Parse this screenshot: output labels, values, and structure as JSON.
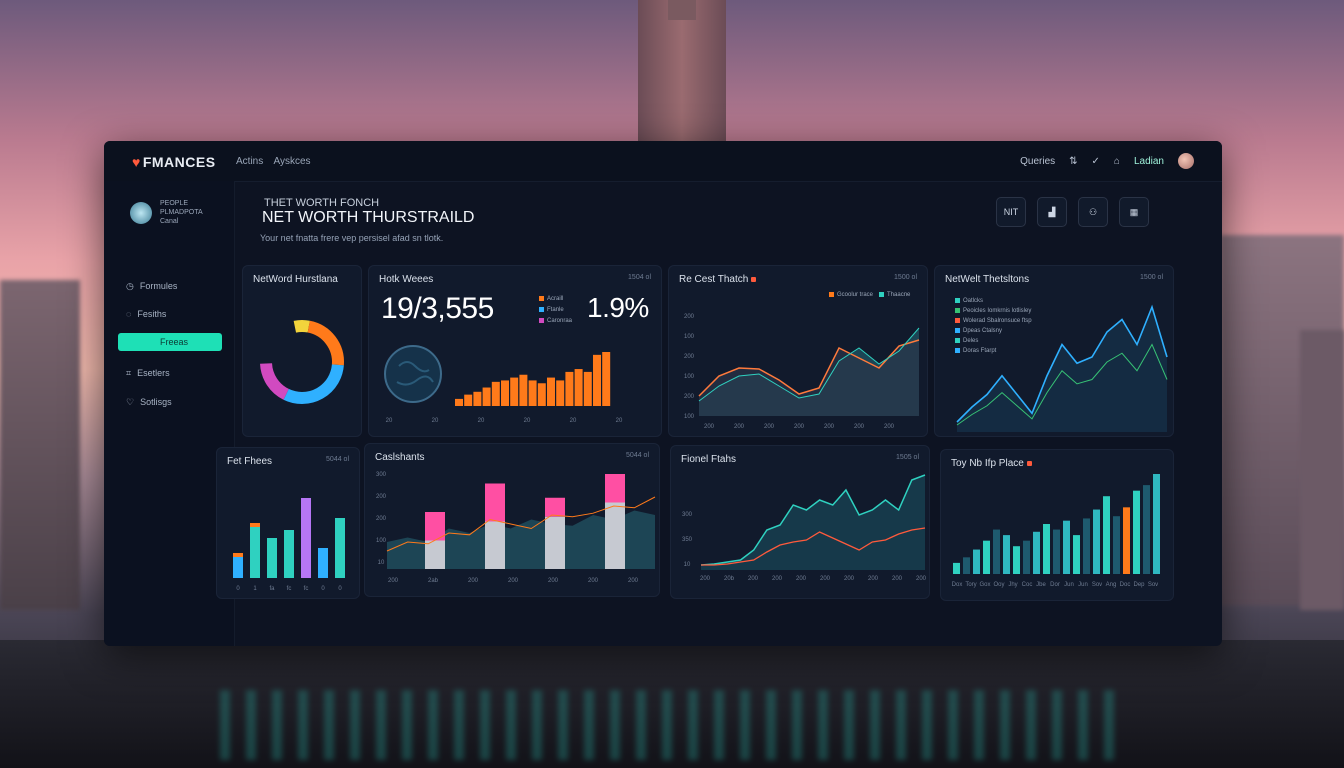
{
  "app": {
    "logo": "FMANCES",
    "nav": [
      "Actins",
      "Ayskces"
    ]
  },
  "topbar": {
    "queries": "Queries",
    "user_name": "Ladian"
  },
  "profile": {
    "line1": "PEOPLE",
    "line2": "PLMADPOTA",
    "line3": "Canal"
  },
  "sidebar": {
    "items": [
      {
        "label": "Formules",
        "icon": "clock-icon"
      },
      {
        "label": "Fesiths",
        "icon": "chat-icon"
      },
      {
        "label": "Freeas",
        "icon": ""
      },
      {
        "label": "Esetlers",
        "icon": "chart-icon"
      },
      {
        "label": "Sotlisgs",
        "icon": "heart-icon"
      }
    ]
  },
  "header": {
    "kicker": "THET WORTH FONCH",
    "title": "NET WORTH THURSTRAILD",
    "subtitle": "Your net fnatta frere vep persisel afad sn tlotk.",
    "buttons": [
      "NIT",
      "",
      "",
      ""
    ]
  },
  "cards": {
    "networth": {
      "title": "NetWord Hurstlana"
    },
    "holdings": {
      "title": "Hotk Weees",
      "meta": "1504 ol",
      "big_value": "19/3,555",
      "pct": "1.9%",
      "legend": [
        "Acraill",
        "Ftanle",
        "Caronraa"
      ],
      "x_labels": [
        "20",
        "20",
        "20",
        "20",
        "20",
        "20"
      ]
    },
    "costtrend": {
      "title": "Re Cest Thatch",
      "meta": "1500 ol",
      "legend": [
        "Gcoolur trace",
        "Thaacne"
      ],
      "y_labels": [
        "200",
        "100",
        "200",
        "100",
        "200",
        "100"
      ],
      "x_labels": [
        "200",
        "200",
        "200",
        "200",
        "200",
        "200",
        "200"
      ]
    },
    "networth2": {
      "title": "NetWelt Thetsltons",
      "meta": "1500 ol",
      "legend": [
        "Oatlcks",
        "Peoicles Iomkrnis lotlisley",
        "Wolerad Sbalronsuce ftsp",
        "Dpeas Ctalsny",
        "Deles",
        "Doras Ftarpt"
      ]
    },
    "feltrues": {
      "title": "Fet Fhees",
      "meta": "5044 ol",
      "x_labels": [
        "0",
        "1",
        "fa",
        "fc",
        "fc",
        "0",
        "0"
      ]
    },
    "cashflow": {
      "title": "Caslshants",
      "meta": "5044 ol",
      "y_labels": [
        "300",
        "200",
        "200",
        "100",
        "10"
      ],
      "x_labels": [
        "200",
        "2ab",
        "200",
        "200",
        "200",
        "200",
        "200"
      ]
    },
    "forward": {
      "title": "Fionel Ftahs",
      "meta": "1505 ol",
      "y_labels": [
        "300",
        "350",
        "10"
      ],
      "x_labels": [
        "200",
        "20b",
        "200",
        "200",
        "200",
        "200",
        "200",
        "200",
        "200",
        "200"
      ]
    },
    "topstep": {
      "title": "Toy Nb Ifp Place",
      "x_labels": [
        "Dox",
        "Tory",
        "Gox",
        "Ooy",
        "Jhy",
        "Coc",
        "Jbe",
        "Dor",
        "Jun",
        "Jun",
        "Sov",
        "Ang",
        "Doc",
        "Dep",
        "Sov"
      ]
    }
  },
  "chart_data": [
    {
      "type": "pie",
      "title": "NetWord Hurstlana",
      "values": [
        8,
        30,
        40,
        22
      ],
      "colors": [
        "#f2d43c",
        "#ff7a1a",
        "#2fb0ff",
        "#d14ac0"
      ]
    },
    {
      "type": "bar",
      "title": "Hotk Weees",
      "values": [
        5,
        8,
        10,
        13,
        17,
        18,
        20,
        22,
        18,
        16,
        20,
        18,
        24,
        26,
        24,
        36,
        38
      ]
    },
    {
      "type": "area",
      "title": "Re Cest Thatch",
      "series": [
        {
          "name": "Gcoolur trace",
          "values": [
            20,
            40,
            48,
            47,
            36,
            22,
            28,
            68,
            58,
            48,
            70,
            76
          ]
        },
        {
          "name": "Thaacne",
          "values": [
            15,
            30,
            40,
            42,
            30,
            18,
            22,
            55,
            68,
            52,
            65,
            88
          ]
        }
      ]
    },
    {
      "type": "line",
      "title": "NetWelt Thetsltons",
      "values": [
        8,
        20,
        30,
        45,
        30,
        15,
        45,
        70,
        55,
        60,
        80,
        90,
        70,
        100,
        60
      ]
    },
    {
      "type": "bar",
      "title": "Fet Fhees",
      "series": [
        {
          "values": [
            25,
            55,
            40,
            48,
            80,
            30,
            60
          ]
        }
      ]
    },
    {
      "type": "bar",
      "title": "Caslshants",
      "values": [
        30,
        60,
        70,
        90,
        55,
        75,
        100
      ]
    },
    {
      "type": "area",
      "title": "Fionel Ftahs",
      "values": [
        5,
        6,
        8,
        10,
        20,
        40,
        45,
        65,
        60,
        70,
        65,
        80,
        55,
        60,
        70,
        60,
        90,
        95
      ]
    },
    {
      "type": "bar",
      "title": "Toy Nb Ifp Place",
      "values": [
        10,
        15,
        22,
        30,
        40,
        35,
        25,
        30,
        38,
        45,
        40,
        48,
        35,
        50,
        58,
        70,
        52,
        60,
        75,
        80,
        90
      ]
    }
  ]
}
